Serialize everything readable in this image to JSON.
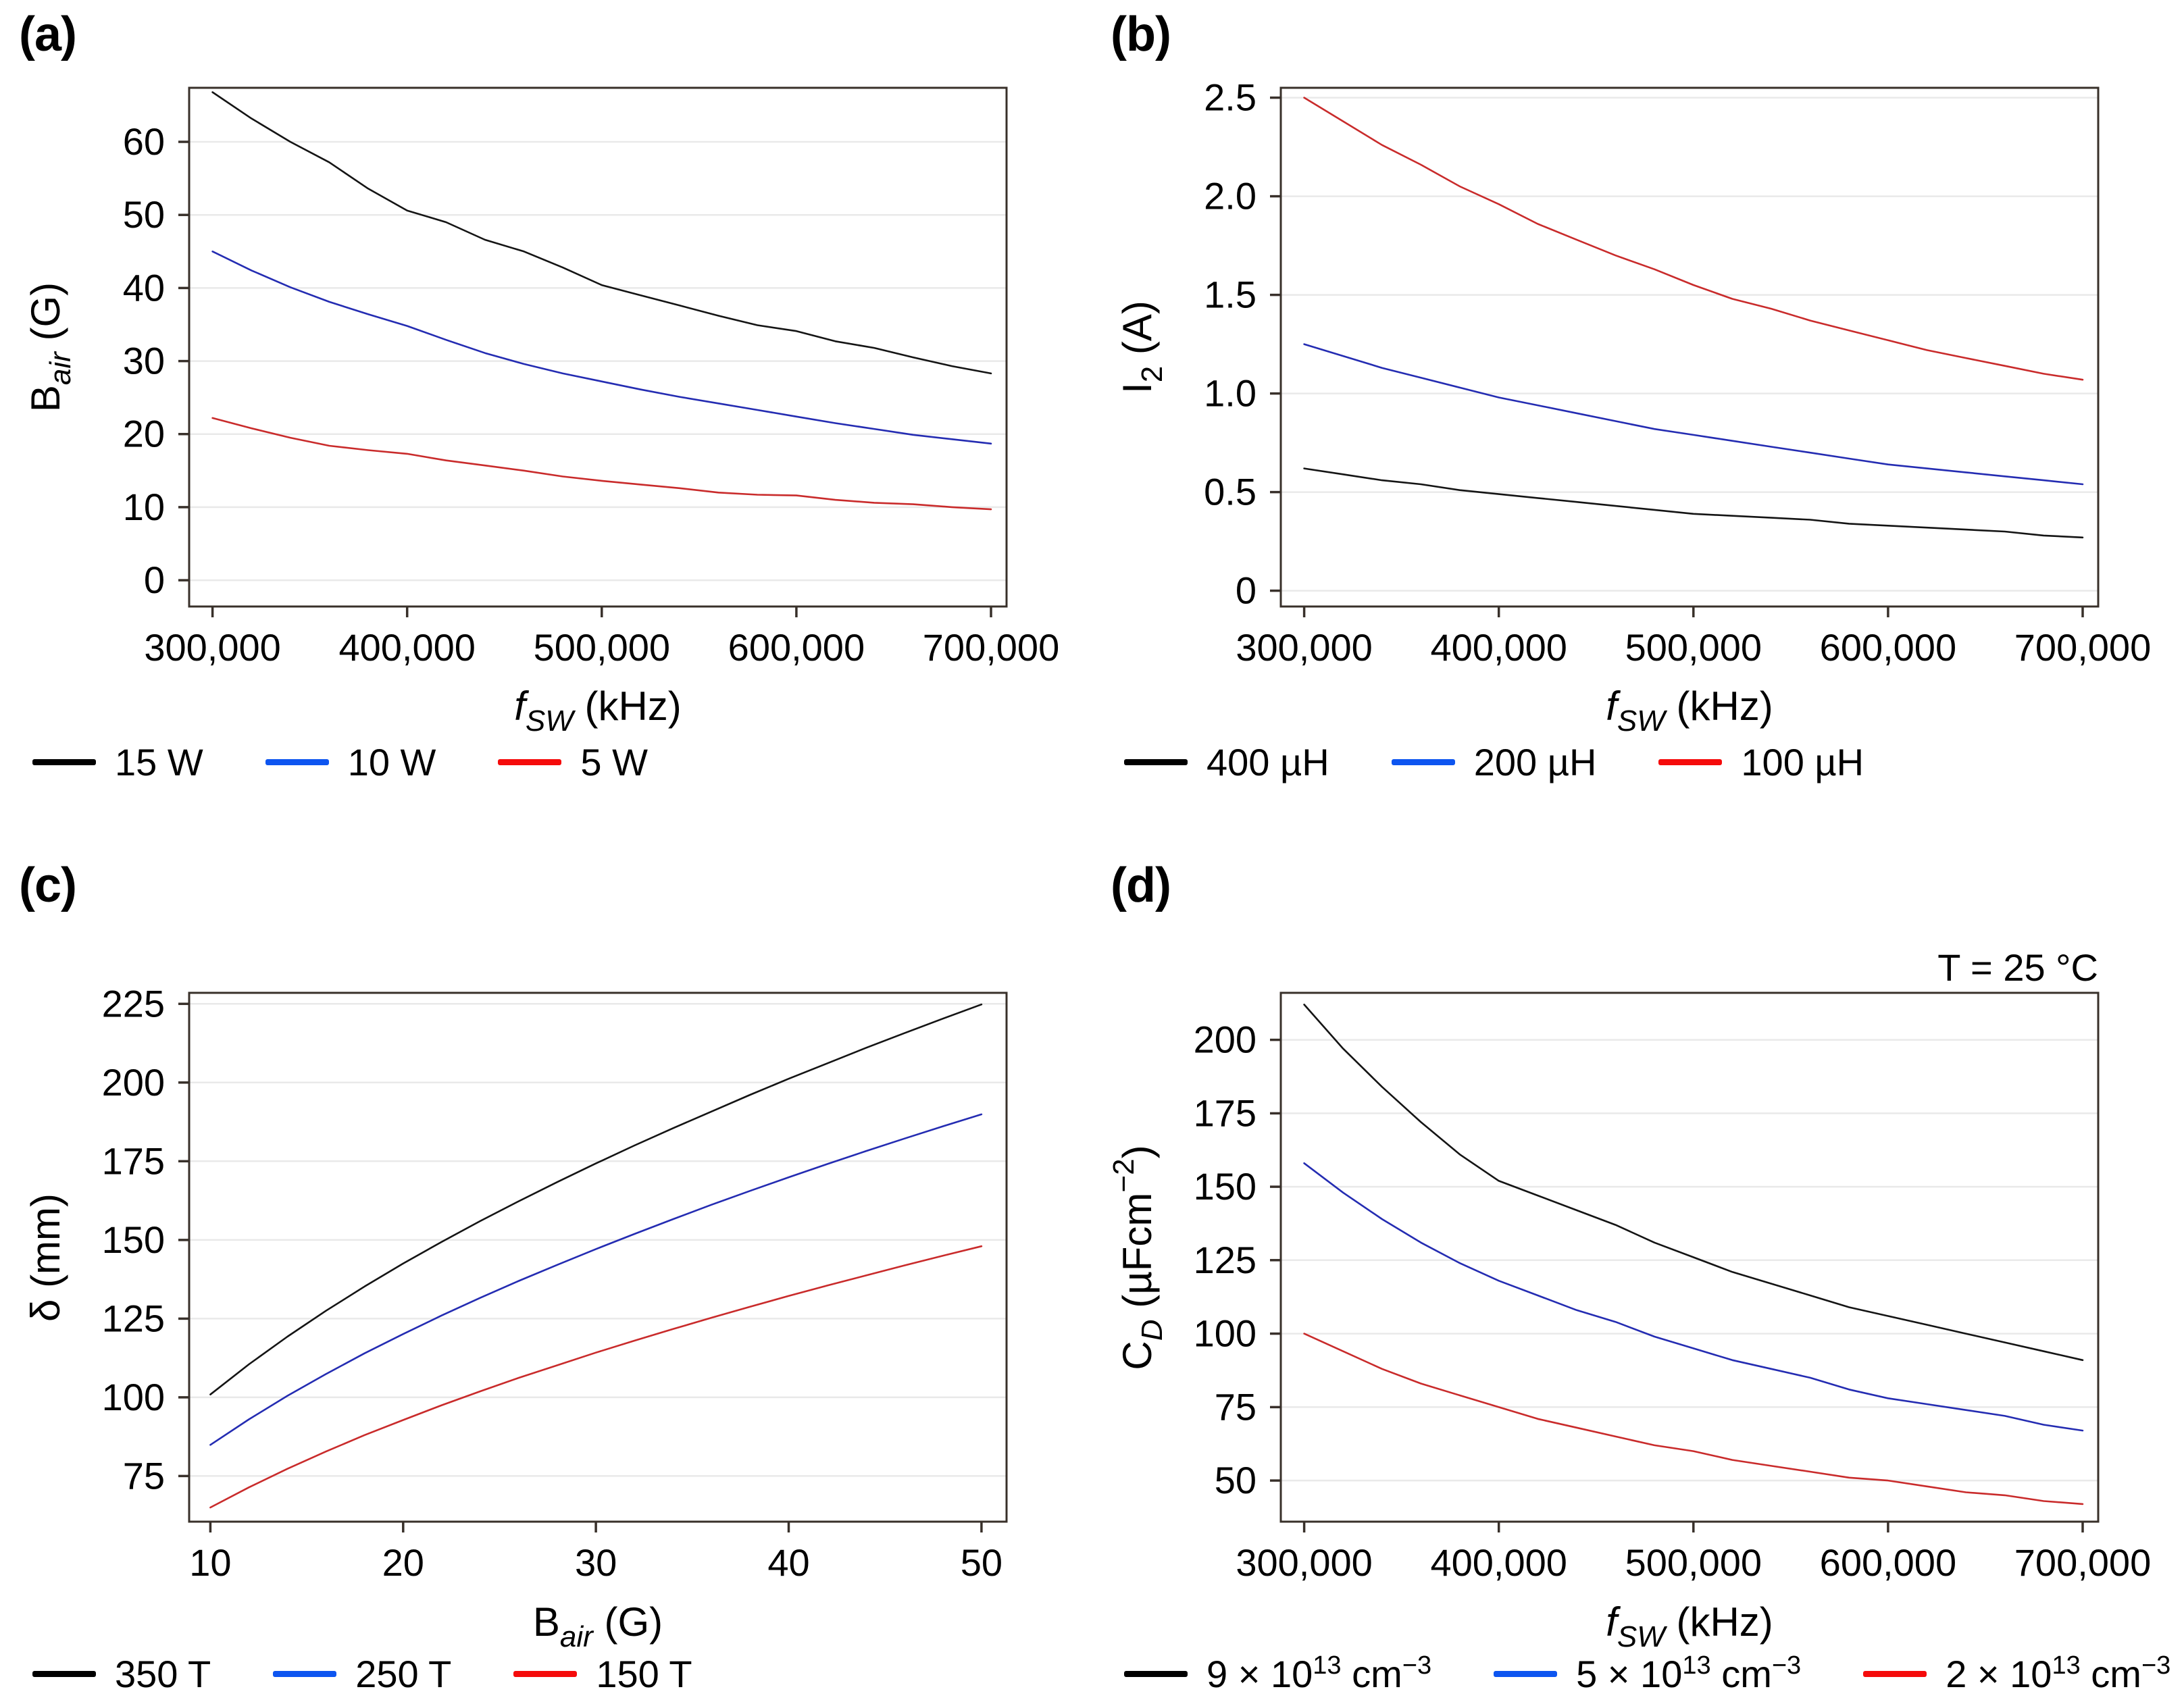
{
  "colors": {
    "background": "#ffffff",
    "frame": "#38302a",
    "grid": "#e9e9e9",
    "text": "#000000",
    "line_black": "#141414",
    "line_blue": "#242cb2",
    "line_red": "#c92b2b",
    "legend_black": "#000000",
    "legend_blue": "#0d55f0",
    "legend_red": "#f50b0b"
  },
  "figure": {
    "panels": [
      {
        "id": "a",
        "label": "(a)",
        "annotation": "",
        "xlabel_parts": [
          {
            "t": "f",
            "i": true
          },
          {
            "t": "SW",
            "sub": true,
            "i": true
          },
          {
            "t": " (kHz)"
          }
        ],
        "ylabel_parts": [
          {
            "t": "B"
          },
          {
            "t": "air",
            "sub": true,
            "i": true
          },
          {
            "t": " (G)"
          }
        ],
        "legend": [
          {
            "color": "#000000",
            "parts": [
              {
                "t": "15 W"
              }
            ]
          },
          {
            "color": "#0d55f0",
            "parts": [
              {
                "t": "10 W"
              }
            ]
          },
          {
            "color": "#f50b0b",
            "parts": [
              {
                "t": "5 W"
              }
            ]
          }
        ]
      },
      {
        "id": "b",
        "label": "(b)",
        "annotation": "",
        "xlabel_parts": [
          {
            "t": "f",
            "i": true
          },
          {
            "t": "SW",
            "sub": true,
            "i": true
          },
          {
            "t": " (kHz)"
          }
        ],
        "ylabel_parts": [
          {
            "t": "I"
          },
          {
            "t": "2",
            "sub": true
          },
          {
            "t": " (A)"
          }
        ],
        "legend": [
          {
            "color": "#000000",
            "parts": [
              {
                "t": "400 µH"
              }
            ]
          },
          {
            "color": "#0d55f0",
            "parts": [
              {
                "t": "200 µH"
              }
            ]
          },
          {
            "color": "#f50b0b",
            "parts": [
              {
                "t": "100 µH"
              }
            ]
          }
        ]
      },
      {
        "id": "c",
        "label": "(c)",
        "annotation": "",
        "xlabel_parts": [
          {
            "t": "B"
          },
          {
            "t": "air",
            "sub": true,
            "i": true
          },
          {
            "t": " (G)"
          }
        ],
        "ylabel_parts": [
          {
            "t": "δ (mm)"
          }
        ],
        "legend": [
          {
            "color": "#000000",
            "parts": [
              {
                "t": "350 T"
              }
            ]
          },
          {
            "color": "#0d55f0",
            "parts": [
              {
                "t": "250 T"
              }
            ]
          },
          {
            "color": "#f50b0b",
            "parts": [
              {
                "t": "150 T"
              }
            ]
          }
        ]
      },
      {
        "id": "d",
        "label": "(d)",
        "annotation": "T = 25 °C",
        "xlabel_parts": [
          {
            "t": "f",
            "i": true
          },
          {
            "t": "SW",
            "sub": true,
            "i": true
          },
          {
            "t": " (kHz)"
          }
        ],
        "ylabel_parts": [
          {
            "t": "C"
          },
          {
            "t": "D",
            "sub": true,
            "i": true
          },
          {
            "t": " (µFcm"
          },
          {
            "t": "−2",
            "sup": true
          },
          {
            "t": ")"
          }
        ],
        "legend": [
          {
            "color": "#000000",
            "parts": [
              {
                "t": "9 × 10"
              },
              {
                "t": "13",
                "sup": true
              },
              {
                "t": " cm"
              },
              {
                "t": "−3",
                "sup": true
              }
            ]
          },
          {
            "color": "#0d55f0",
            "parts": [
              {
                "t": "5 × 10"
              },
              {
                "t": "13",
                "sup": true
              },
              {
                "t": " cm"
              },
              {
                "t": "−3",
                "sup": true
              }
            ]
          },
          {
            "color": "#f50b0b",
            "parts": [
              {
                "t": "2 × 10"
              },
              {
                "t": "13",
                "sup": true
              },
              {
                "t": " cm"
              },
              {
                "t": "−3",
                "sup": true
              }
            ]
          }
        ]
      }
    ]
  },
  "chart_data": [
    {
      "type": "line",
      "panel": "a",
      "title": "",
      "xlabel": "f_SW (kHz)",
      "ylabel": "B_air (G)",
      "grid": "horizontal",
      "legend_position": "below-left",
      "x": [
        300000,
        320000,
        340000,
        360000,
        380000,
        400000,
        420000,
        440000,
        460000,
        480000,
        500000,
        520000,
        540000,
        560000,
        580000,
        600000,
        620000,
        640000,
        660000,
        680000,
        700000
      ],
      "series": [
        {
          "name": "15 W",
          "color": "#141414",
          "values": [
            66.8,
            63.2,
            60.0,
            57.2,
            53.6,
            50.6,
            49.0,
            46.6,
            45.0,
            42.8,
            40.4,
            39.0,
            37.6,
            36.2,
            34.9,
            34.1,
            32.7,
            31.8,
            30.5,
            29.3,
            28.3
          ]
        },
        {
          "name": "10 W",
          "color": "#242cb2",
          "values": [
            45.0,
            42.4,
            40.1,
            38.1,
            36.4,
            34.8,
            32.9,
            31.1,
            29.6,
            28.3,
            27.2,
            26.1,
            25.1,
            24.2,
            23.3,
            22.4,
            21.5,
            20.7,
            19.9,
            19.3,
            18.7
          ]
        },
        {
          "name": "5 W",
          "color": "#c92b2b",
          "values": [
            22.2,
            20.8,
            19.5,
            18.4,
            17.8,
            17.3,
            16.4,
            15.7,
            15.0,
            14.2,
            13.6,
            13.1,
            12.6,
            12.0,
            11.7,
            11.6,
            11.0,
            10.6,
            10.4,
            10.0,
            9.7
          ]
        }
      ],
      "xlim": [
        288000,
        708000
      ],
      "ylim": [
        -3.6,
        67.4
      ],
      "xticks": {
        "values": [
          300000,
          400000,
          500000,
          600000,
          700000
        ],
        "labels": [
          "300,000",
          "400,000",
          "500,000",
          "600,000",
          "700,000"
        ]
      },
      "yticks": {
        "values": [
          0,
          10,
          20,
          30,
          40,
          50,
          60
        ],
        "labels": [
          "0",
          "10",
          "20",
          "30",
          "40",
          "50",
          "60"
        ]
      }
    },
    {
      "type": "line",
      "panel": "b",
      "title": "",
      "xlabel": "f_SW (kHz)",
      "ylabel": "I_2 (A)",
      "grid": "horizontal",
      "legend_position": "below-left",
      "x": [
        300000,
        320000,
        340000,
        360000,
        380000,
        400000,
        420000,
        440000,
        460000,
        480000,
        500000,
        520000,
        540000,
        560000,
        580000,
        600000,
        620000,
        640000,
        660000,
        680000,
        700000
      ],
      "series": [
        {
          "name": "400 µH",
          "color": "#141414",
          "values": [
            0.62,
            0.59,
            0.56,
            0.54,
            0.51,
            0.49,
            0.47,
            0.45,
            0.43,
            0.41,
            0.39,
            0.38,
            0.37,
            0.36,
            0.34,
            0.33,
            0.32,
            0.31,
            0.3,
            0.28,
            0.27
          ]
        },
        {
          "name": "200 µH",
          "color": "#242cb2",
          "values": [
            1.25,
            1.19,
            1.13,
            1.08,
            1.03,
            0.98,
            0.94,
            0.9,
            0.86,
            0.82,
            0.79,
            0.76,
            0.73,
            0.7,
            0.67,
            0.64,
            0.62,
            0.6,
            0.58,
            0.56,
            0.54
          ]
        },
        {
          "name": "100 µH",
          "color": "#c92b2b",
          "values": [
            2.5,
            2.38,
            2.26,
            2.16,
            2.05,
            1.96,
            1.86,
            1.78,
            1.7,
            1.63,
            1.55,
            1.48,
            1.43,
            1.37,
            1.32,
            1.27,
            1.22,
            1.18,
            1.14,
            1.1,
            1.07
          ]
        }
      ],
      "xlim": [
        288000,
        708000
      ],
      "ylim": [
        -0.08,
        2.55
      ],
      "xticks": {
        "values": [
          300000,
          400000,
          500000,
          600000,
          700000
        ],
        "labels": [
          "300,000",
          "400,000",
          "500,000",
          "600,000",
          "700,000"
        ]
      },
      "yticks": {
        "values": [
          0,
          0.5,
          1.0,
          1.5,
          2.0,
          2.5
        ],
        "labels": [
          "0",
          "0.5",
          "1.0",
          "1.5",
          "2.0",
          "2.5"
        ]
      }
    },
    {
      "type": "line",
      "panel": "c",
      "title": "",
      "xlabel": "B_air (G)",
      "ylabel": "δ (mm)",
      "grid": "horizontal",
      "legend_position": "below-left",
      "x": [
        10,
        12,
        14,
        16,
        18,
        20,
        22,
        24,
        26,
        28,
        30,
        32,
        34,
        36,
        38,
        40,
        42,
        44,
        46,
        48,
        50
      ],
      "series": [
        {
          "name": "350 T",
          "color": "#141414",
          "values": [
            100.9,
            110.5,
            119.3,
            127.5,
            135.2,
            142.5,
            149.4,
            156.0,
            162.3,
            168.4,
            174.3,
            180.0,
            185.5,
            190.8,
            196.1,
            201.2,
            206.1,
            211.0,
            215.7,
            220.3,
            224.8
          ]
        },
        {
          "name": "250 T",
          "color": "#242cb2",
          "values": [
            84.9,
            93.0,
            100.5,
            107.4,
            114.0,
            120.1,
            126.0,
            131.6,
            137.0,
            142.1,
            147.1,
            151.9,
            156.6,
            161.2,
            165.6,
            169.9,
            174.1,
            178.2,
            182.2,
            186.1,
            189.9
          ]
        },
        {
          "name": "150 T",
          "color": "#c92b2b",
          "values": [
            65.0,
            71.4,
            77.3,
            82.8,
            88.0,
            92.8,
            97.5,
            101.9,
            106.2,
            110.2,
            114.2,
            118.0,
            121.7,
            125.3,
            128.8,
            132.2,
            135.5,
            138.7,
            141.9,
            145.0,
            148.0
          ]
        }
      ],
      "xlim": [
        8.9,
        51.3
      ],
      "ylim": [
        60.5,
        228.5
      ],
      "xticks": {
        "values": [
          10,
          20,
          30,
          40,
          50
        ],
        "labels": [
          "10",
          "20",
          "30",
          "40",
          "50"
        ]
      },
      "yticks": {
        "values": [
          75,
          100,
          125,
          150,
          175,
          200,
          225
        ],
        "labels": [
          "75",
          "100",
          "125",
          "150",
          "175",
          "200",
          "225"
        ]
      }
    },
    {
      "type": "line",
      "panel": "d",
      "title": "T = 25 °C",
      "xlabel": "f_SW (kHz)",
      "ylabel": "C_D (µFcm⁻²)",
      "grid": "horizontal",
      "legend_position": "below-left",
      "x": [
        300000,
        320000,
        340000,
        360000,
        380000,
        400000,
        420000,
        440000,
        460000,
        480000,
        500000,
        520000,
        540000,
        560000,
        580000,
        600000,
        620000,
        640000,
        660000,
        680000,
        700000
      ],
      "series": [
        {
          "name": "9 × 10¹³ cm⁻³",
          "color": "#141414",
          "values": [
            212,
            197,
            184,
            172,
            161,
            152,
            147,
            142,
            137,
            131,
            126,
            121,
            117,
            113,
            109,
            106,
            103,
            100,
            97,
            94,
            91
          ]
        },
        {
          "name": "5 × 10¹³ cm⁻³",
          "color": "#242cb2",
          "values": [
            158,
            148,
            139,
            131,
            124,
            118,
            113,
            108,
            104,
            99,
            95,
            91,
            88,
            85,
            81,
            78,
            76,
            74,
            72,
            69,
            67
          ]
        },
        {
          "name": "2 × 10¹³ cm⁻³",
          "color": "#c92b2b",
          "values": [
            100,
            94,
            88,
            83,
            79,
            75,
            71,
            68,
            65,
            62,
            60,
            57,
            55,
            53,
            51,
            50,
            48,
            46,
            45,
            43,
            42
          ]
        }
      ],
      "xlim": [
        288000,
        708000
      ],
      "ylim": [
        36,
        216
      ],
      "xticks": {
        "values": [
          300000,
          400000,
          500000,
          600000,
          700000
        ],
        "labels": [
          "300,000",
          "400,000",
          "500,000",
          "600,000",
          "700,000"
        ]
      },
      "yticks": {
        "values": [
          50,
          75,
          100,
          125,
          150,
          175,
          200
        ],
        "labels": [
          "50",
          "75",
          "100",
          "125",
          "150",
          "175",
          "200"
        ]
      }
    }
  ]
}
